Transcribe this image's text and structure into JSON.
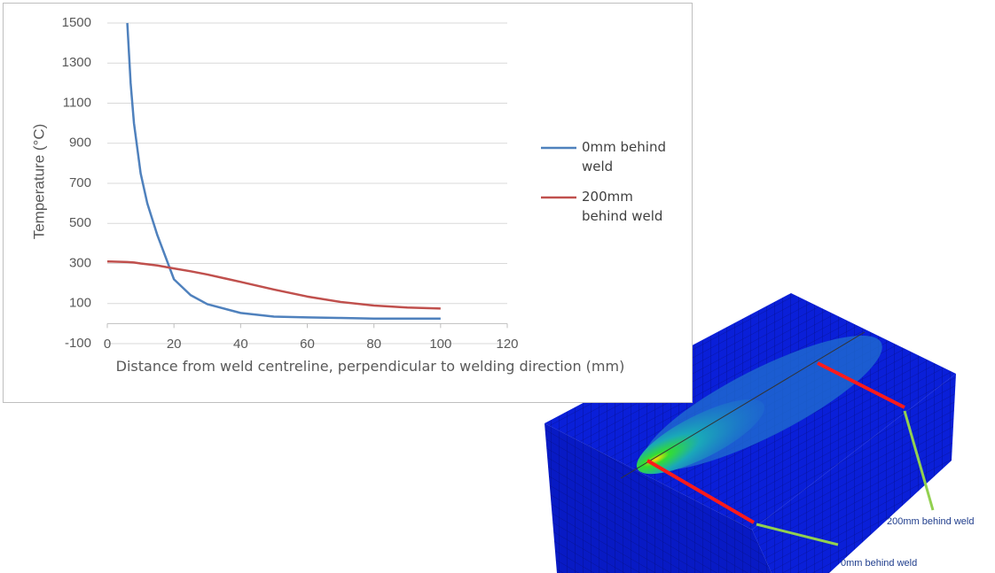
{
  "chart_data": {
    "type": "line",
    "x_label": "Distance from weld centreline, perpendicular to welding direction (mm)",
    "y_label": "Temperature (°C)",
    "x": [
      0,
      5,
      6,
      7,
      8,
      10,
      12,
      15,
      20,
      25,
      30,
      40,
      50,
      60,
      70,
      80,
      90,
      100
    ],
    "series": [
      {
        "name": "0mm behind weld",
        "color": "#4f81bd",
        "values": [
          null,
          null,
          1500,
          1200,
          1000,
          750,
          600,
          442,
          221,
          142,
          97,
          53,
          35,
          31,
          28,
          25,
          25,
          25
        ]
      },
      {
        "name": "200mm behind weld",
        "color": "#c0504d",
        "values": [
          310,
          308,
          307,
          306,
          305,
          300,
          296,
          290,
          275,
          261,
          245,
          208,
          170,
          135,
          108,
          90,
          80,
          75
        ]
      }
    ],
    "xlim": [
      0,
      120
    ],
    "xticks": [
      0,
      20,
      40,
      60,
      80,
      100,
      120
    ],
    "ylim": [
      -100,
      1500
    ],
    "yticks": [
      -100,
      100,
      300,
      500,
      700,
      900,
      1100,
      1300,
      1500
    ],
    "grid": true,
    "legend": "right"
  },
  "figure": {
    "labels": [
      "200mm behind weld",
      "0mm behind weld"
    ]
  }
}
